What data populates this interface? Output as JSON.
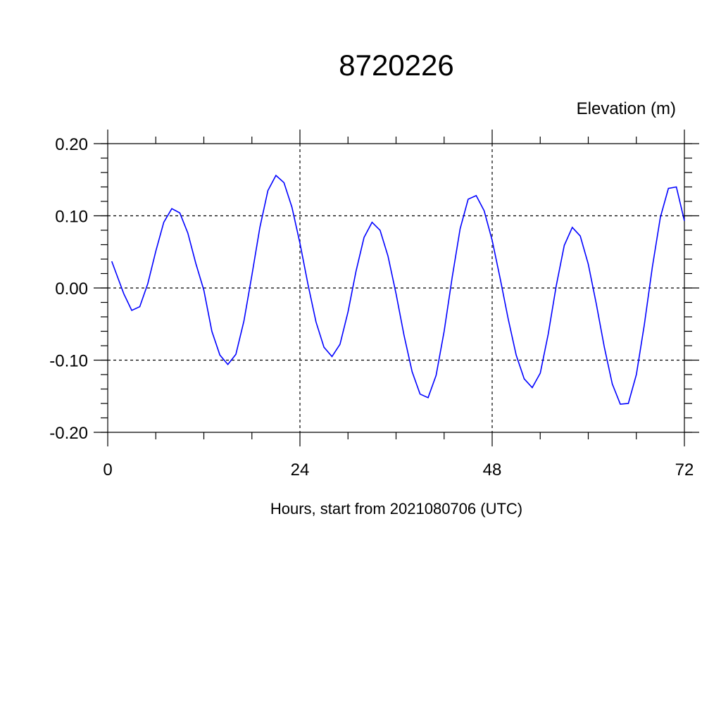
{
  "chart_data": {
    "type": "line",
    "title": "8720226",
    "subtitle": "Elevation (m)",
    "xlabel": "Hours, start from 2021080706 (UTC)",
    "ylabel": "",
    "xlim": [
      0,
      72
    ],
    "ylim": [
      -0.2,
      0.2
    ],
    "x_ticks": [
      0,
      24,
      48,
      72
    ],
    "x_tick_labels": [
      "0",
      "24",
      "48",
      "72"
    ],
    "x_minor_step": 6,
    "y_ticks": [
      0.2,
      0.1,
      0.0,
      -0.1,
      -0.2
    ],
    "y_tick_labels": [
      "0.20",
      "0.10",
      "0.00",
      "-0.10",
      "-0.20"
    ],
    "y_minor_step": 0.02,
    "grid": true,
    "grid_style": "dashed",
    "line_color": "#0000ff",
    "series": [
      {
        "x": [
          0.5,
          1,
          2,
          3,
          4,
          5,
          6,
          7,
          8,
          9,
          10,
          11,
          12,
          13,
          14,
          15,
          16,
          17,
          18,
          19,
          20,
          21,
          22,
          23,
          24,
          25,
          26,
          27,
          28,
          29,
          30,
          31,
          32,
          33,
          34,
          35,
          36,
          37,
          38,
          39,
          40,
          41,
          42,
          43,
          44,
          45,
          46,
          47,
          48,
          49,
          50,
          51,
          52,
          53,
          54,
          55,
          56,
          57,
          58,
          59,
          60,
          61,
          62,
          63,
          64,
          65,
          66,
          67,
          68,
          69,
          70,
          71,
          72
        ],
        "y": [
          0.037,
          0.022,
          -0.008,
          -0.031,
          -0.026,
          0.006,
          0.051,
          0.091,
          0.11,
          0.104,
          0.076,
          0.034,
          -0.003,
          -0.06,
          -0.093,
          -0.106,
          -0.092,
          -0.046,
          0.018,
          0.084,
          0.135,
          0.156,
          0.146,
          0.112,
          0.062,
          0.005,
          -0.047,
          -0.082,
          -0.095,
          -0.078,
          -0.033,
          0.023,
          0.07,
          0.091,
          0.08,
          0.044,
          -0.008,
          -0.066,
          -0.116,
          -0.147,
          -0.152,
          -0.121,
          -0.06,
          0.014,
          0.082,
          0.123,
          0.128,
          0.107,
          0.066,
          0.013,
          -0.043,
          -0.093,
          -0.126,
          -0.138,
          -0.118,
          -0.064,
          0.003,
          0.059,
          0.084,
          0.072,
          0.033,
          -0.022,
          -0.082,
          -0.133,
          -0.161,
          -0.16,
          -0.12,
          -0.051,
          0.029,
          0.098,
          0.138,
          0.14,
          0.093
        ]
      }
    ]
  }
}
